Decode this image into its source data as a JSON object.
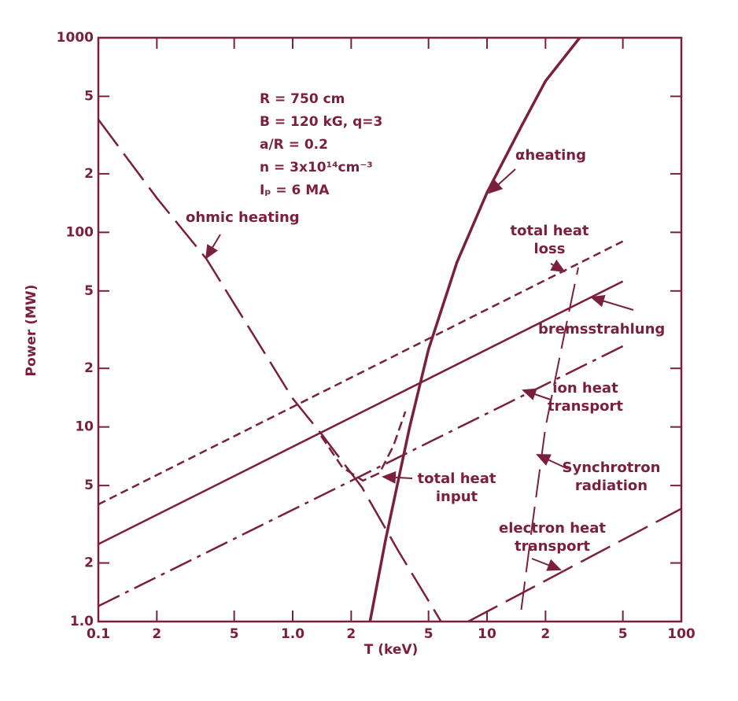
{
  "chart_data": {
    "type": "line",
    "x_label": "T (keV)",
    "y_label": "Power (MW)",
    "log_x": true,
    "log_y": true,
    "color": "#7a1f3d",
    "xlim": [
      0.1,
      100
    ],
    "ylim": [
      1,
      1000
    ],
    "xticks": [
      0.1,
      {
        "value": 0.2,
        "label": "2"
      },
      {
        "value": 0.5,
        "label": "5"
      },
      {
        "value": 1,
        "label": "1.0"
      },
      {
        "value": 2,
        "label": "2"
      },
      {
        "value": 5,
        "label": "5"
      },
      10,
      {
        "value": 20,
        "label": "2"
      },
      {
        "value": 50,
        "label": "5"
      },
      100
    ],
    "yticks": [
      {
        "value": 1,
        "label": "1.0"
      },
      2,
      5,
      10,
      {
        "value": 20,
        "label": "2"
      },
      {
        "value": 50,
        "label": "5"
      },
      100,
      {
        "value": 200,
        "label": "2"
      },
      {
        "value": 500,
        "label": "5"
      },
      1000
    ],
    "annotations": [
      "R = 750 cm",
      "B = 120 kG, q=3",
      "a/R = 0.2",
      "n = 3x10¹⁴cm⁻³",
      "Iₚ = 6 MA"
    ],
    "series": [
      {
        "name": "ohmic heating",
        "style": "long-dash",
        "x": [
          0.1,
          0.2,
          0.36,
          0.6,
          1.0,
          1.43,
          2.27,
          3.5,
          5.8
        ],
        "values": [
          380,
          150,
          73,
          32,
          14,
          9,
          4.9,
          2.3,
          1.0
        ]
      },
      {
        "name": "αheating",
        "style": "solid-thick",
        "x": [
          2.5,
          3,
          4,
          5,
          7,
          10,
          15,
          20,
          30
        ],
        "values": [
          1,
          2.6,
          10,
          25,
          70,
          160,
          350,
          600,
          1000
        ]
      },
      {
        "name": "total heat loss",
        "style": "short-dash",
        "x": [
          0.1,
          50
        ],
        "values": [
          4,
          90
        ]
      },
      {
        "name": "bremsstrahlung",
        "style": "solid",
        "x": [
          0.1,
          50
        ],
        "values": [
          2.5,
          56
        ]
      },
      {
        "name": "ion heat transport",
        "style": "dash-dot",
        "x": [
          0.1,
          50
        ],
        "values": [
          1.2,
          26
        ]
      },
      {
        "name": "Synchrotron radiation",
        "style": "long-dash-thin",
        "x": [
          15,
          17,
          20,
          25,
          29.5
        ],
        "values": [
          1.15,
          3,
          10,
          30,
          66
        ]
      },
      {
        "name": "electron heat transport",
        "style": "long-dash",
        "x": [
          8,
          100
        ],
        "values": [
          1.0,
          3.8
        ]
      },
      {
        "name": "total heat input",
        "style": "dash",
        "x": [
          1.4,
          1.8,
          2.3,
          2.8,
          3.3,
          3.8
        ],
        "values": [
          9,
          6.2,
          5.3,
          5.8,
          8,
          12
        ]
      }
    ]
  }
}
